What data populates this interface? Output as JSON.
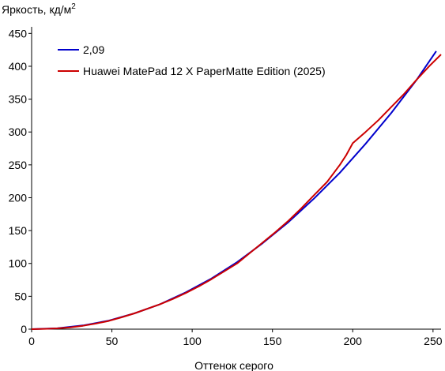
{
  "chart_data": {
    "type": "line",
    "ylabel": "Яркость, кд/м",
    "ylabel_sup": "2",
    "xlabel": "Оттенок серого",
    "xlim": [
      0,
      255
    ],
    "ylim": [
      0,
      460
    ],
    "x_ticks": [
      0,
      50,
      100,
      150,
      200,
      250
    ],
    "y_ticks": [
      0,
      50,
      100,
      150,
      200,
      250,
      300,
      350,
      400,
      450
    ],
    "grid": false,
    "legend_position": "top-left",
    "series": [
      {
        "name": "2,09",
        "color": "#0000cc",
        "x": [
          0,
          16,
          32,
          48,
          64,
          80,
          96,
          112,
          128,
          144,
          160,
          176,
          192,
          208,
          224,
          240,
          252
        ],
        "y": [
          0,
          1.3,
          5.7,
          13,
          24,
          38,
          56,
          77,
          102,
          131,
          163,
          199,
          238,
          282,
          329,
          380,
          423
        ]
      },
      {
        "name": "Huawei MatePad 12 X PaperMatte Edition (2025)",
        "color": "#cc0000",
        "x": [
          0,
          8,
          16,
          24,
          32,
          40,
          48,
          56,
          64,
          72,
          80,
          88,
          96,
          104,
          112,
          120,
          128,
          136,
          144,
          152,
          160,
          168,
          176,
          184,
          192,
          196,
          200,
          208,
          216,
          224,
          232,
          240,
          248,
          255
        ],
        "y": [
          0,
          0.5,
          1.2,
          2.8,
          5.2,
          8.5,
          12.5,
          18,
          24,
          31,
          38,
          46,
          55,
          65,
          76,
          88,
          100,
          116,
          132,
          148,
          165,
          184,
          204,
          224,
          250,
          265,
          283,
          300,
          318,
          338,
          358,
          380,
          401,
          418
        ]
      }
    ]
  }
}
